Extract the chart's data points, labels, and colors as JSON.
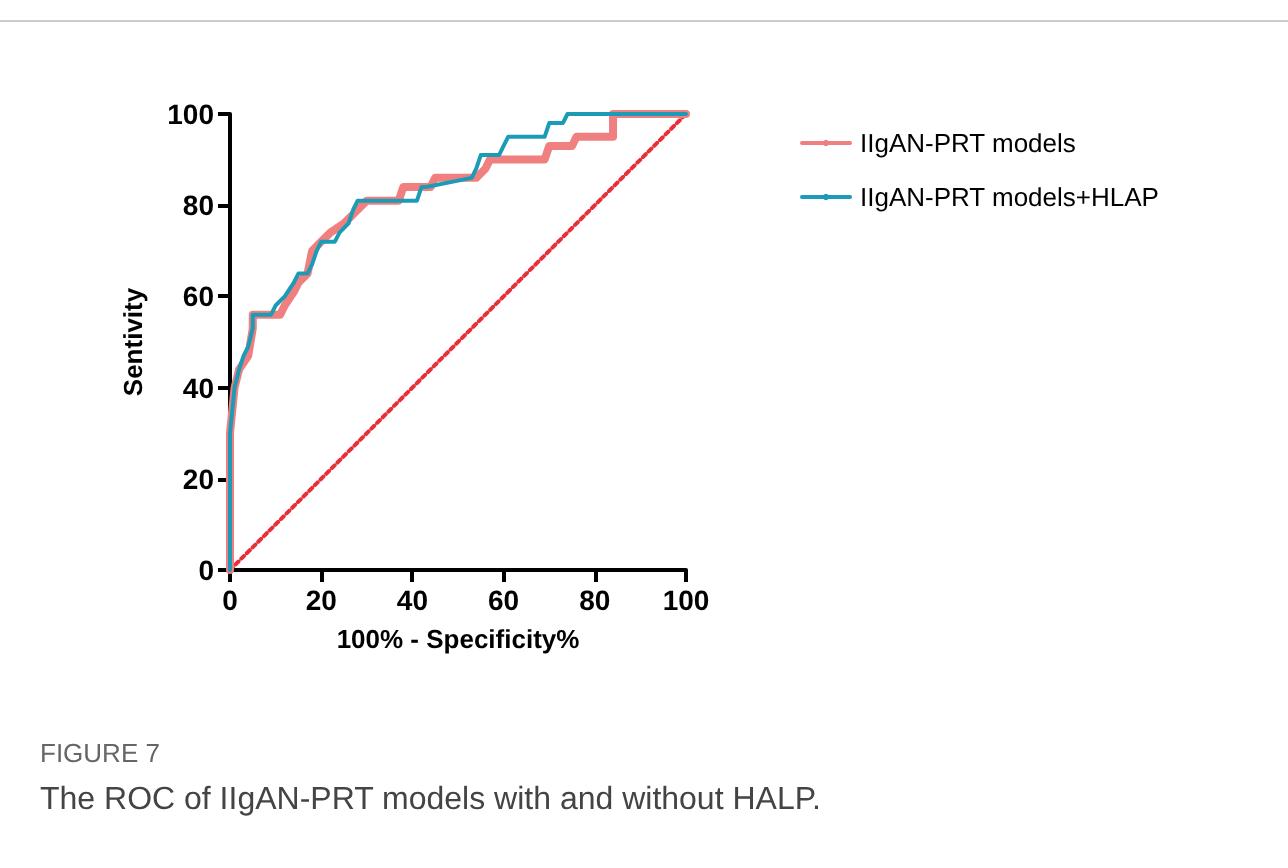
{
  "chart_data": {
    "type": "line",
    "xlabel": "100% - Specificity%",
    "ylabel": "Sentivity",
    "xlim": [
      0,
      100
    ],
    "xticks": [
      0,
      20,
      40,
      60,
      80,
      100
    ],
    "ylim": [
      0,
      100
    ],
    "yticks": [
      0,
      20,
      40,
      60,
      80,
      100
    ],
    "grid": false,
    "legend": "top right",
    "marker": "none",
    "annotations": [
      "FIGURE 7",
      "The ROC of IIgAN-PRT models with and without HALP."
    ],
    "series": [
      {
        "name": "IIgAN-PRT models",
        "color": "#f08080",
        "x": [
          0,
          0,
          1,
          2,
          4,
          5,
          5,
          11,
          12,
          14,
          15,
          17,
          18,
          20,
          22,
          25,
          28,
          30,
          37,
          38,
          44,
          45,
          54,
          56,
          57,
          69,
          70,
          75,
          76,
          84,
          84,
          100
        ],
        "values": [
          0,
          30,
          40,
          44,
          47,
          53,
          56,
          56,
          58,
          61,
          63,
          65,
          70,
          72,
          74,
          76,
          79,
          81,
          81,
          84,
          84,
          86,
          86,
          88,
          90,
          90,
          93,
          93,
          95,
          95,
          100,
          100
        ]
      },
      {
        "name": "IIgAN-PRT models+HLAP",
        "color": "#1b9bb5",
        "x": [
          0,
          0,
          1,
          2,
          3,
          4,
          5,
          5,
          9,
          10,
          12,
          14,
          15,
          17,
          18,
          19,
          20,
          23,
          24,
          26,
          27,
          28,
          41,
          42,
          43,
          53,
          54,
          55,
          59,
          60,
          61,
          69,
          70,
          73,
          74,
          100
        ],
        "values": [
          0,
          30,
          40,
          44,
          47,
          49,
          53,
          56,
          56,
          58,
          60,
          63,
          65,
          65,
          67,
          70,
          72,
          72,
          74,
          76,
          79,
          81,
          81,
          84,
          84,
          86,
          88,
          91,
          91,
          93,
          95,
          95,
          98,
          98,
          100,
          100
        ]
      },
      {
        "type": "line",
        "line_style": "dotted",
        "color": "#e8303a",
        "x": [
          0,
          100
        ],
        "values": [
          0,
          100
        ]
      }
    ]
  }
}
